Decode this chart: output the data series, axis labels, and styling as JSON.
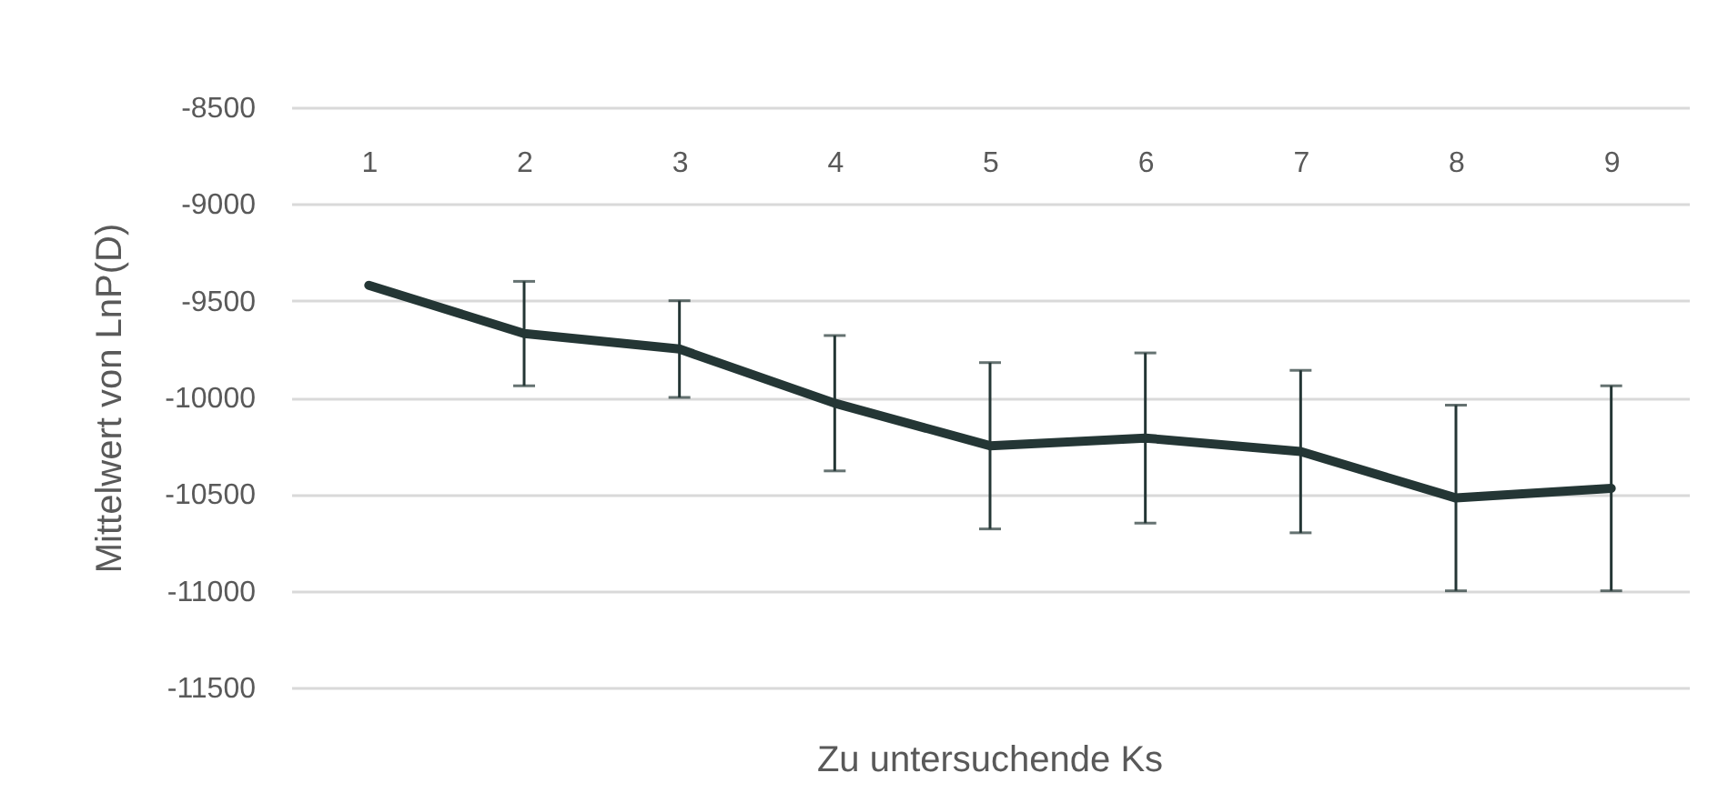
{
  "chart_data": {
    "type": "line",
    "xlabel": "Zu untersuchende Ks",
    "ylabel": "Mittelwert von LnP(D)",
    "categories": [
      "1",
      "2",
      "3",
      "4",
      "5",
      "6",
      "7",
      "8",
      "9"
    ],
    "series": [
      {
        "color": "#243635",
        "values": [
          -9420,
          -9670,
          -9750,
          -10030,
          -10250,
          -10210,
          -10280,
          -10520,
          -10470
        ],
        "errors": [
          null,
          270,
          250,
          350,
          430,
          440,
          420,
          480,
          530
        ]
      }
    ],
    "ylim": [
      -11500,
      -8500
    ],
    "yticks": [
      -11500,
      -11000,
      -10500,
      -10000,
      -9500,
      -9000,
      -8500
    ],
    "grid": "y"
  }
}
